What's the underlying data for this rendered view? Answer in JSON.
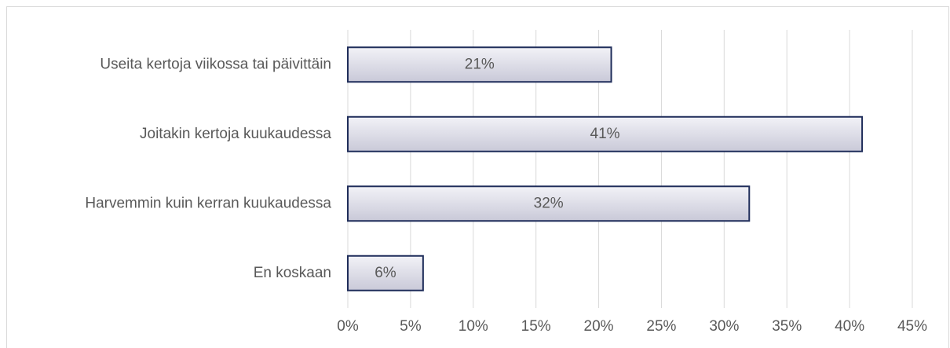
{
  "chart_data": {
    "type": "barh",
    "categories": [
      "Useita kertoja viikossa tai päivittäin",
      "Joitakin kertoja kuukaudessa",
      "Harvemmin kuin kerran kuukaudessa",
      "En koskaan"
    ],
    "values": [
      21,
      41,
      32,
      6
    ],
    "value_labels": [
      "21%",
      "41%",
      "32%",
      "6%"
    ],
    "color": "#1f2d5a",
    "xlim": [
      0,
      45
    ],
    "xticks": [
      {
        "value": 0,
        "label": "0%"
      },
      {
        "value": 5,
        "label": "5%"
      },
      {
        "value": 10,
        "label": "10%"
      },
      {
        "value": 15,
        "label": "15%"
      },
      {
        "value": 20,
        "label": "20%"
      },
      {
        "value": 25,
        "label": "25%"
      },
      {
        "value": 30,
        "label": "30%"
      },
      {
        "value": 35,
        "label": "35%"
      },
      {
        "value": 40,
        "label": "40%"
      },
      {
        "value": 45,
        "label": "45%"
      }
    ],
    "grid": true
  }
}
